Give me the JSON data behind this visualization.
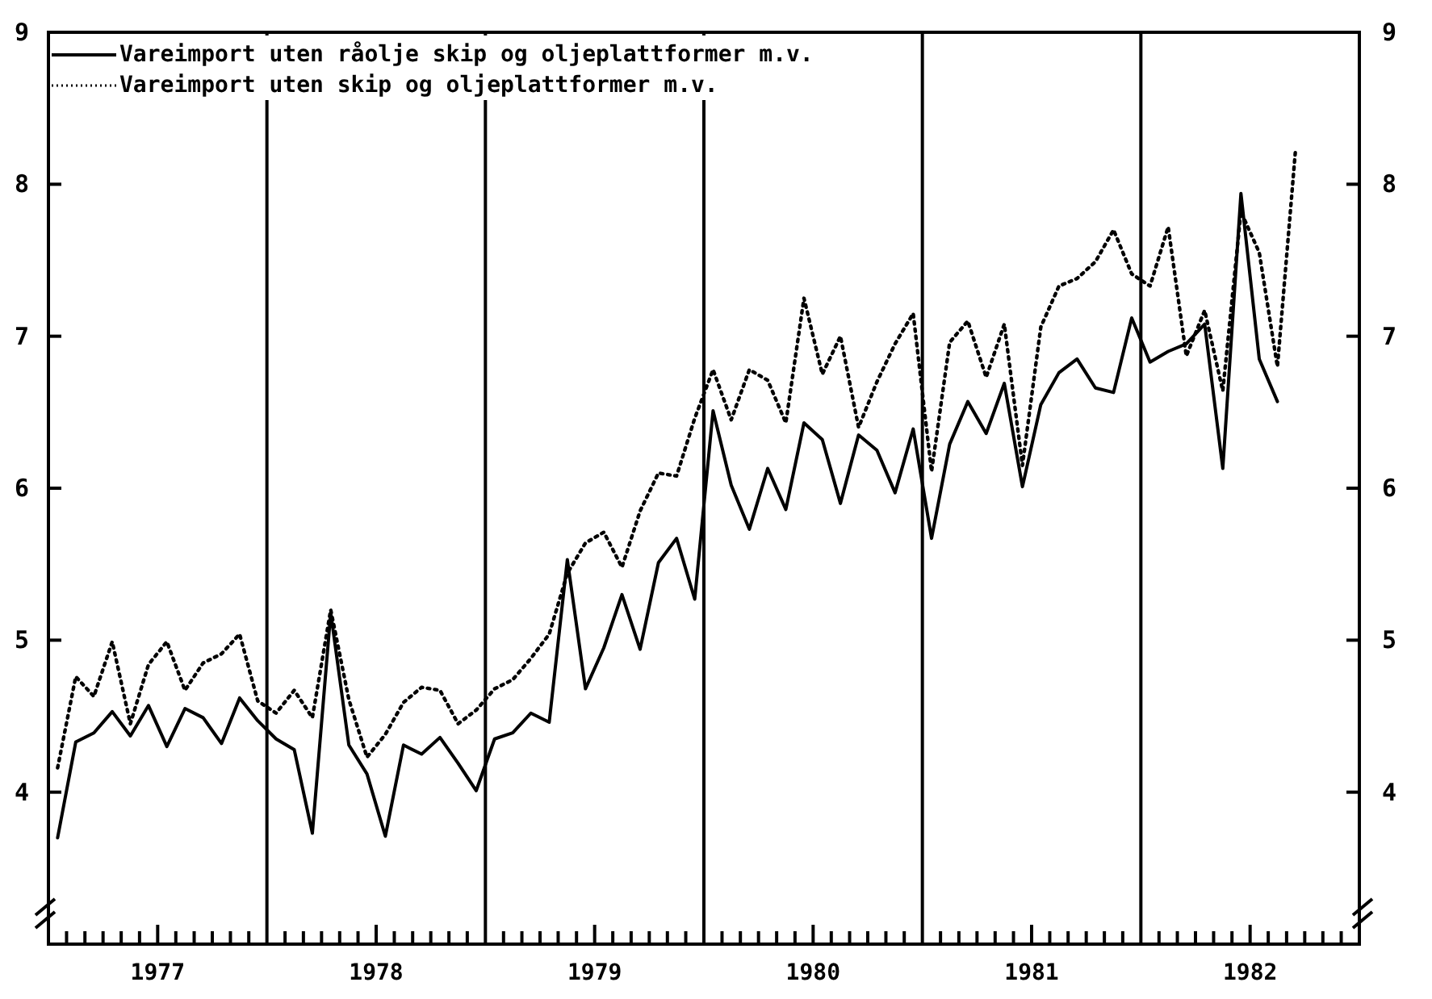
{
  "chart_data": {
    "type": "line",
    "legend": "top left",
    "xlim": [
      1977,
      1983
    ],
    "ylim": [
      3,
      9
    ],
    "y2lim": [
      3,
      9
    ],
    "yticks": [
      4,
      5,
      6,
      7,
      8,
      9
    ],
    "y2ticks": [
      4,
      5,
      6,
      7,
      8,
      9
    ],
    "xticks": [
      {
        "value": 1977.083,
        "label": null
      },
      {
        "value": 1977.167,
        "label": null
      },
      {
        "value": 1977.25,
        "label": null
      },
      {
        "value": 1977.333,
        "label": null
      },
      {
        "value": 1977.417,
        "label": null
      },
      {
        "value": 1977.5,
        "label": "1977"
      },
      {
        "value": 1977.583,
        "label": null
      },
      {
        "value": 1977.667,
        "label": null
      },
      {
        "value": 1977.75,
        "label": null
      },
      {
        "value": 1977.833,
        "label": null
      },
      {
        "value": 1977.917,
        "label": null
      },
      {
        "value": 1978.083,
        "label": null
      },
      {
        "value": 1978.167,
        "label": null
      },
      {
        "value": 1978.25,
        "label": null
      },
      {
        "value": 1978.333,
        "label": null
      },
      {
        "value": 1978.417,
        "label": null
      },
      {
        "value": 1978.5,
        "label": "1978"
      },
      {
        "value": 1978.583,
        "label": null
      },
      {
        "value": 1978.667,
        "label": null
      },
      {
        "value": 1978.75,
        "label": null
      },
      {
        "value": 1978.833,
        "label": null
      },
      {
        "value": 1978.917,
        "label": null
      },
      {
        "value": 1979.083,
        "label": null
      },
      {
        "value": 1979.167,
        "label": null
      },
      {
        "value": 1979.25,
        "label": null
      },
      {
        "value": 1979.333,
        "label": null
      },
      {
        "value": 1979.417,
        "label": null
      },
      {
        "value": 1979.5,
        "label": "1979"
      },
      {
        "value": 1979.583,
        "label": null
      },
      {
        "value": 1979.667,
        "label": null
      },
      {
        "value": 1979.75,
        "label": null
      },
      {
        "value": 1979.833,
        "label": null
      },
      {
        "value": 1979.917,
        "label": null
      },
      {
        "value": 1980.083,
        "label": null
      },
      {
        "value": 1980.167,
        "label": null
      },
      {
        "value": 1980.25,
        "label": null
      },
      {
        "value": 1980.333,
        "label": null
      },
      {
        "value": 1980.417,
        "label": null
      },
      {
        "value": 1980.5,
        "label": "1980"
      },
      {
        "value": 1980.583,
        "label": null
      },
      {
        "value": 1980.667,
        "label": null
      },
      {
        "value": 1980.75,
        "label": null
      },
      {
        "value": 1980.833,
        "label": null
      },
      {
        "value": 1980.917,
        "label": null
      },
      {
        "value": 1981.083,
        "label": null
      },
      {
        "value": 1981.167,
        "label": null
      },
      {
        "value": 1981.25,
        "label": null
      },
      {
        "value": 1981.333,
        "label": null
      },
      {
        "value": 1981.417,
        "label": null
      },
      {
        "value": 1981.5,
        "label": "1981"
      },
      {
        "value": 1981.583,
        "label": null
      },
      {
        "value": 1981.667,
        "label": null
      },
      {
        "value": 1981.75,
        "label": null
      },
      {
        "value": 1981.833,
        "label": null
      },
      {
        "value": 1981.917,
        "label": null
      },
      {
        "value": 1982.083,
        "label": null
      },
      {
        "value": 1982.167,
        "label": null
      },
      {
        "value": 1982.25,
        "label": null
      },
      {
        "value": 1982.333,
        "label": null
      },
      {
        "value": 1982.417,
        "label": null
      },
      {
        "value": 1982.5,
        "label": "1982"
      },
      {
        "value": 1982.583,
        "label": null
      },
      {
        "value": 1982.667,
        "label": null
      },
      {
        "value": 1982.75,
        "label": null
      },
      {
        "value": 1982.833,
        "label": null
      },
      {
        "value": 1982.917,
        "label": null
      }
    ],
    "ref_lines": [
      {
        "axis": "x",
        "value": 1978
      },
      {
        "axis": "x",
        "value": 1979
      },
      {
        "axis": "x",
        "value": 1980
      },
      {
        "axis": "x",
        "value": 1981
      },
      {
        "axis": "x",
        "value": 1982
      }
    ],
    "x": [
      1977.042,
      1977.125,
      1977.208,
      1977.292,
      1977.375,
      1977.458,
      1977.542,
      1977.625,
      1977.708,
      1977.792,
      1977.875,
      1977.958,
      1978.042,
      1978.125,
      1978.208,
      1978.292,
      1978.375,
      1978.458,
      1978.542,
      1978.625,
      1978.708,
      1978.792,
      1978.875,
      1978.958,
      1979.042,
      1979.125,
      1979.208,
      1979.292,
      1979.375,
      1979.458,
      1979.542,
      1979.625,
      1979.708,
      1979.792,
      1979.875,
      1979.958,
      1980.042,
      1980.125,
      1980.208,
      1980.292,
      1980.375,
      1980.458,
      1980.542,
      1980.625,
      1980.708,
      1980.792,
      1980.875,
      1980.958,
      1981.042,
      1981.125,
      1981.208,
      1981.292,
      1981.375,
      1981.458,
      1981.542,
      1981.625,
      1981.708,
      1981.792,
      1981.875,
      1981.958,
      1982.042,
      1982.125,
      1982.208,
      1982.292,
      1982.375,
      1982.458,
      1982.542,
      1982.625,
      1982.708
    ],
    "series": [
      {
        "name": "Vareimport uten råolje skip og oljeplattformer m.v.",
        "color": "#000000",
        "line_style": "solid",
        "values": [
          3.7,
          4.33,
          4.39,
          4.53,
          4.37,
          4.57,
          4.3,
          4.55,
          4.49,
          4.32,
          4.62,
          4.47,
          4.35,
          4.28,
          3.73,
          5.18,
          4.31,
          4.12,
          3.71,
          4.31,
          4.25,
          4.36,
          4.19,
          4.01,
          4.35,
          4.39,
          4.52,
          4.46,
          5.53,
          4.68,
          4.95,
          5.3,
          4.94,
          5.51,
          5.67,
          5.27,
          6.51,
          6.02,
          5.73,
          6.13,
          5.86,
          6.43,
          6.32,
          5.9,
          6.35,
          6.25,
          5.97,
          6.39,
          5.67,
          6.29,
          6.57,
          6.36,
          6.69,
          6.01,
          6.55,
          6.76,
          6.85,
          6.66,
          6.63,
          7.12,
          6.83,
          6.9,
          6.95,
          7.08,
          6.13,
          7.94,
          6.85,
          6.57,
          null
        ]
      },
      {
        "name": "Vareimport uten skip og oljeplattformer m.v.",
        "color": "#000000",
        "line_style": "dotted",
        "values": [
          4.16,
          4.76,
          4.63,
          4.99,
          4.45,
          4.84,
          4.99,
          4.67,
          4.85,
          4.91,
          5.04,
          4.6,
          4.52,
          4.67,
          4.49,
          5.2,
          4.61,
          4.23,
          4.38,
          4.59,
          4.69,
          4.67,
          4.45,
          4.54,
          4.68,
          4.74,
          4.88,
          5.04,
          5.44,
          5.64,
          5.71,
          5.48,
          5.85,
          6.1,
          6.08,
          6.46,
          6.78,
          6.45,
          6.78,
          6.71,
          6.43,
          7.25,
          6.75,
          7.0,
          6.4,
          6.7,
          6.95,
          7.15,
          6.11,
          6.96,
          7.1,
          6.73,
          7.08,
          6.15,
          7.06,
          7.33,
          7.38,
          7.49,
          7.7,
          7.41,
          7.33,
          7.72,
          6.87,
          7.17,
          6.64,
          7.82,
          7.55,
          6.8,
          8.23
        ]
      }
    ]
  }
}
